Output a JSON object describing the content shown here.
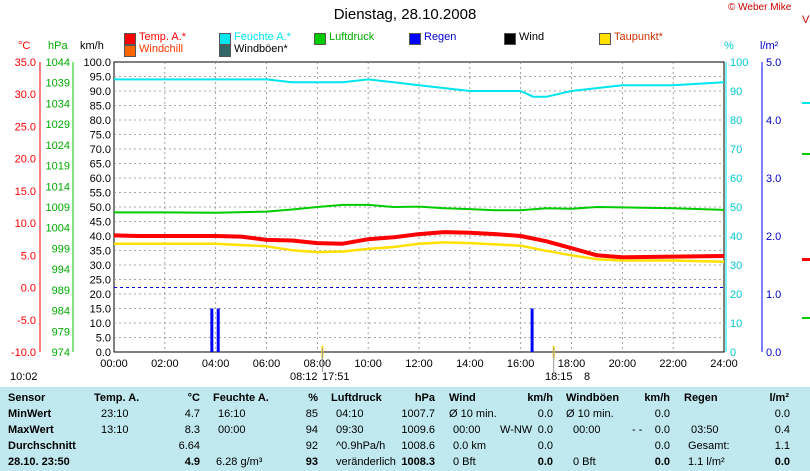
{
  "header": {
    "title": "Dienstag, 28.10.2008",
    "copyright": "© Weber Mike",
    "edge_glyph": "V"
  },
  "legend": [
    {
      "label": "Temp. A.*",
      "color": "#ff0000"
    },
    {
      "label": "Feuchte A.*",
      "color": "#00e5ee"
    },
    {
      "label": "Luftdruck",
      "color": "#00cc00"
    },
    {
      "label": "Regen",
      "color": "#0000ff"
    },
    {
      "label": "Wind",
      "color": "#000000"
    },
    {
      "label": "Taupunkt*",
      "color": "#ffe000"
    },
    {
      "label": "Windchill",
      "color": "#ff6600"
    },
    {
      "label": "Windböen*",
      "color": "#336666"
    }
  ],
  "axis_units": {
    "temp": "°C",
    "pressure": "hPa",
    "wind": "km/h",
    "humidity": "%",
    "rain": "l/m²"
  },
  "chart_data": {
    "type": "line",
    "x_unit": "hours",
    "xlim": [
      0,
      24
    ],
    "x_ticks": [
      "00:00",
      "02:00",
      "04:00",
      "06:00",
      "08:00",
      "10:00",
      "12:00",
      "14:00",
      "16:00",
      "18:00",
      "20:00",
      "22:00",
      "24:00"
    ],
    "axes": {
      "temp": {
        "range": [
          -10,
          35
        ],
        "ticks": [
          "35.0",
          "30.0",
          "25.0",
          "20.0",
          "15.0",
          "10.0",
          "5.0",
          "0.0",
          "-5.0",
          "-10.0"
        ]
      },
      "pressure": {
        "range": [
          974,
          1044
        ],
        "ticks": [
          "1044",
          "1039",
          "1034",
          "1029",
          "1024",
          "1019",
          "1014",
          "1009",
          "1004",
          "999",
          "994",
          "989",
          "984",
          "979",
          "974"
        ]
      },
      "wind": {
        "range": [
          0,
          100
        ],
        "ticks": [
          "100.0",
          "95.0",
          "90.0",
          "85.0",
          "80.0",
          "75.0",
          "70.0",
          "65.0",
          "60.0",
          "55.0",
          "50.0",
          "45.0",
          "40.0",
          "35.0",
          "30.0",
          "25.0",
          "20.0",
          "15.0",
          "10.0",
          "5.0",
          "0.0"
        ]
      },
      "humidity": {
        "range": [
          0,
          100
        ],
        "ticks": [
          "100",
          "90",
          "80",
          "70",
          "60",
          "50",
          "40",
          "30",
          "20",
          "10",
          "0"
        ]
      },
      "rain": {
        "range": [
          0,
          5
        ],
        "ticks": [
          "5.0",
          "4.0",
          "3.0",
          "2.0",
          "1.0",
          "0.0"
        ]
      }
    },
    "series": [
      {
        "name": "Feuchte A.*",
        "axis": "humidity",
        "color": "#00e5ee",
        "points": [
          [
            0,
            94
          ],
          [
            4,
            94
          ],
          [
            6,
            94
          ],
          [
            7,
            93
          ],
          [
            8,
            93
          ],
          [
            9,
            93
          ],
          [
            10,
            94
          ],
          [
            11,
            93
          ],
          [
            12,
            92
          ],
          [
            13,
            91
          ],
          [
            14,
            90
          ],
          [
            15,
            90
          ],
          [
            16,
            90
          ],
          [
            16.5,
            88
          ],
          [
            17,
            88
          ],
          [
            18,
            90
          ],
          [
            19,
            91
          ],
          [
            20,
            92
          ],
          [
            22,
            92
          ],
          [
            24,
            93
          ]
        ]
      },
      {
        "name": "Luftdruck",
        "axis": "pressure",
        "color": "#00cc00",
        "points": [
          [
            0,
            1007.7
          ],
          [
            2,
            1007.7
          ],
          [
            4,
            1007.6
          ],
          [
            6,
            1007.9
          ],
          [
            7,
            1008.4
          ],
          [
            8,
            1009.0
          ],
          [
            9,
            1009.5
          ],
          [
            10,
            1009.5
          ],
          [
            11,
            1009.0
          ],
          [
            12,
            1009.1
          ],
          [
            13,
            1008.7
          ],
          [
            14,
            1008.5
          ],
          [
            15,
            1008.2
          ],
          [
            16,
            1008.2
          ],
          [
            17,
            1008.7
          ],
          [
            18,
            1008.6
          ],
          [
            19,
            1009.0
          ],
          [
            20,
            1008.9
          ],
          [
            22,
            1008.7
          ],
          [
            24,
            1008.3
          ]
        ]
      },
      {
        "name": "Taupunkt*",
        "axis": "temp",
        "color": "#ffe000",
        "points": [
          [
            0,
            6.8
          ],
          [
            2,
            6.8
          ],
          [
            4,
            6.8
          ],
          [
            6,
            6.4
          ],
          [
            7,
            5.8
          ],
          [
            8,
            5.5
          ],
          [
            9,
            5.6
          ],
          [
            10,
            6.0
          ],
          [
            11,
            6.3
          ],
          [
            12,
            6.8
          ],
          [
            13,
            7.0
          ],
          [
            14,
            6.9
          ],
          [
            15,
            6.7
          ],
          [
            16,
            6.5
          ],
          [
            17,
            5.7
          ],
          [
            18,
            5.0
          ],
          [
            19,
            4.4
          ],
          [
            20,
            4.2
          ],
          [
            22,
            4.2
          ],
          [
            24,
            4.0
          ]
        ]
      },
      {
        "name": "Temp. A.*",
        "axis": "temp",
        "color": "#ff0000",
        "points": [
          [
            0,
            8.1
          ],
          [
            1,
            8.0
          ],
          [
            2,
            8.0
          ],
          [
            4,
            8.0
          ],
          [
            5,
            7.9
          ],
          [
            6,
            7.4
          ],
          [
            7,
            7.3
          ],
          [
            8,
            6.9
          ],
          [
            9,
            6.8
          ],
          [
            10,
            7.5
          ],
          [
            11,
            7.8
          ],
          [
            12,
            8.3
          ],
          [
            13,
            8.6
          ],
          [
            14,
            8.5
          ],
          [
            15,
            8.3
          ],
          [
            16,
            8.0
          ],
          [
            17,
            7.2
          ],
          [
            18,
            6.1
          ],
          [
            19,
            5.0
          ],
          [
            20,
            4.7
          ],
          [
            22,
            4.8
          ],
          [
            24,
            4.9
          ]
        ]
      },
      {
        "name": "Regen",
        "axis": "rain",
        "color": "#0000ff",
        "bars": [
          [
            3.85,
            0.75
          ],
          [
            4.1,
            0.75
          ],
          [
            16.45,
            0.75
          ]
        ]
      }
    ],
    "grid": true
  },
  "time_labels": {
    "left_time": "10:02",
    "sunrise": "08:12",
    "sunrise_end": "17:51",
    "sunset": "18:15",
    "sunset_end": "8"
  },
  "stats": {
    "head": {
      "sensor": "Sensor",
      "temp": "Temp. A.",
      "temp_unit": "°C",
      "hum": "Feuchte A.",
      "hum_unit": "%",
      "press": "Luftdruck",
      "press_unit": "hPa",
      "wind": "Wind",
      "wind_unit": "km/h",
      "gust": "Windböen",
      "gust_unit": "km/h",
      "rain": "Regen",
      "rain_unit": "l/m²"
    },
    "min": {
      "label": "MinWert",
      "temp_time": "23:10",
      "temp_val": "4.7",
      "hum_time": "16:10",
      "hum_val": "85",
      "press_time": "04:10",
      "press_val": "1007.7",
      "wind_label": "Ø 10 min.",
      "wind_val": "0.0",
      "gust_label": "Ø 10 min.",
      "gust_val": "0.0",
      "rain_val": "0.0"
    },
    "max": {
      "label": "MaxWert",
      "temp_time": "13:10",
      "temp_val": "8.3",
      "hum_time": "00:00",
      "hum_val": "94",
      "press_time": "09:30",
      "press_val": "1009.6",
      "wind_time": "00:00",
      "wind_dir": "W-NW",
      "wind_val": "0.0",
      "gust_time": "00:00",
      "gust_dir": "- - ",
      "gust_val": "0.0",
      "rain_time": "03:50",
      "rain_val": "0.4"
    },
    "avg": {
      "label": "Durchschnitt",
      "temp_val": "6.64",
      "hum_val": "92",
      "press_label": "^0.9hPa/h",
      "press_val": "1008.6",
      "wind_label": "0.0 km",
      "wind_val": "0.0",
      "gust_val": "0.0",
      "rain_label": "Gesamt:",
      "rain_val": "1.1"
    },
    "now": {
      "label": "28.10. 23:50",
      "temp_val": "4.9",
      "hum_label": "6.28 g/m³",
      "hum_val": "93",
      "press_label": "veränderlich",
      "press_val": "1008.3",
      "wind_label": "0 Bft",
      "wind_val": "0.0",
      "gust_label": "0 Bft",
      "gust_val": "0.0",
      "rain_label": "1.1 l/m²",
      "rain_val": "0.0"
    }
  }
}
